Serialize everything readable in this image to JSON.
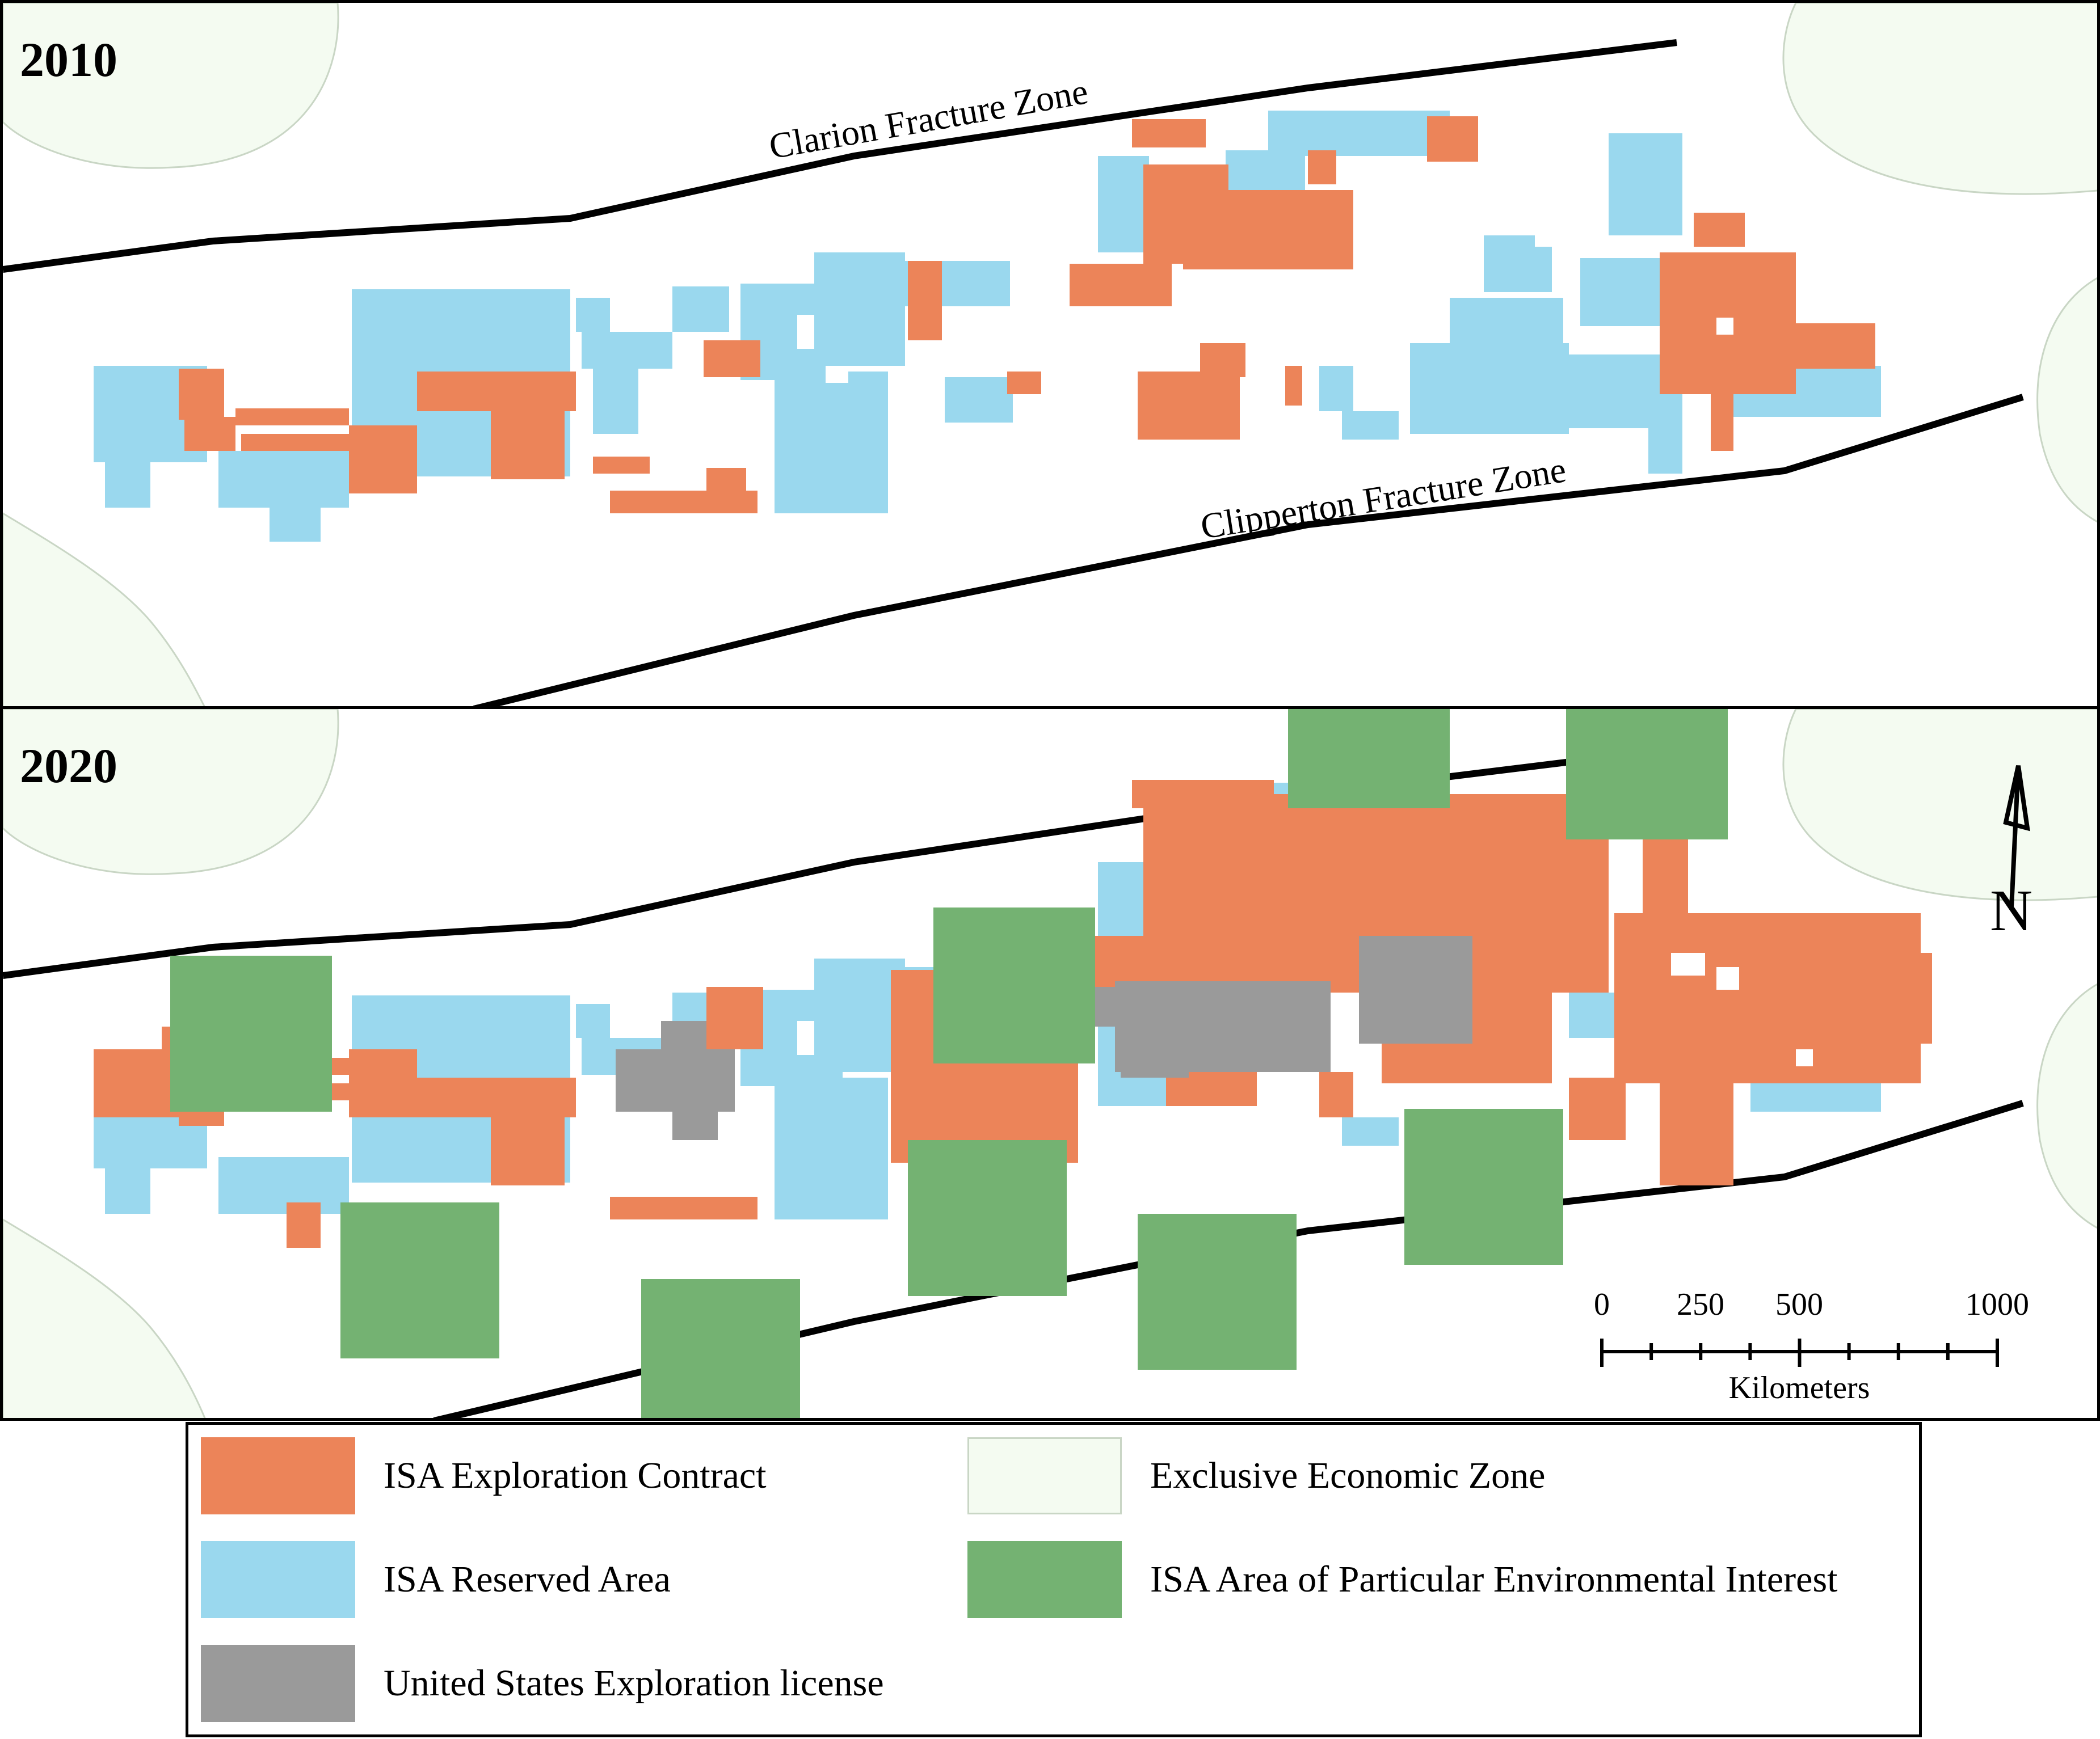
{
  "colors": {
    "contract": "#ec8459",
    "reserved": "#9ad8ee",
    "us_license": "#9a9a9a",
    "eez": "#f4fbf1",
    "apei": "#74b272",
    "eez_stroke": "#c9d6c5"
  },
  "panels": {
    "top": {
      "year": "2010",
      "clarion_label": "Clarion Fracture Zone",
      "clipperton_label": "Clipperton Fracture Zone"
    },
    "bottom": {
      "year": "2020"
    }
  },
  "scale_bar": {
    "ticks": [
      "0",
      "250",
      "500",
      "1000"
    ],
    "unit": "Kilometers"
  },
  "north_arrow": {
    "label": "N",
    "icon": "north-arrow-icon"
  },
  "legend": {
    "items": [
      {
        "key": "contract",
        "label": "ISA Exploration Contract"
      },
      {
        "key": "reserved",
        "label": "ISA Reserved Area"
      },
      {
        "key": "us_license",
        "label": "United States Exploration license"
      },
      {
        "key": "eez",
        "label": "Exclusive Economic Zone"
      },
      {
        "key": "apei",
        "label": "ISA Area of Particular Environmental Interest"
      }
    ]
  }
}
